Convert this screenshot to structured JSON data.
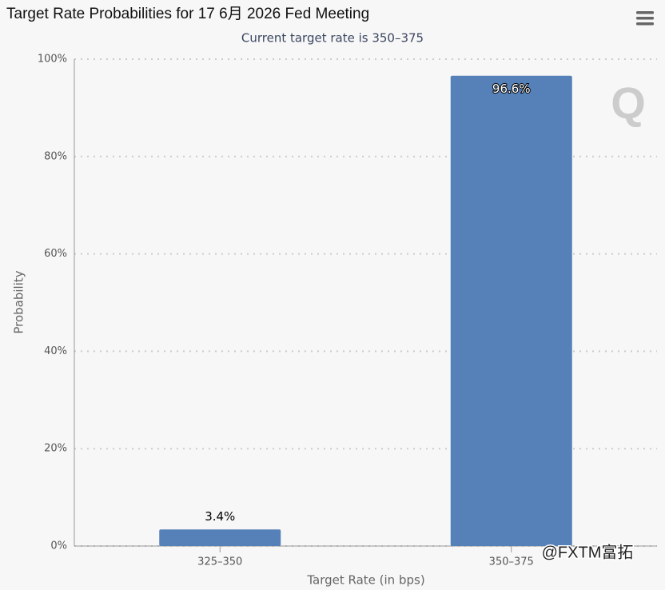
{
  "chart_data": {
    "type": "bar",
    "title": "Target Rate Probabilities for 17 6月 2026 Fed Meeting",
    "subtitle": "Current target rate is 350–375",
    "x_label": "Target Rate (in bps)",
    "y_label": "Probability",
    "categories": [
      "325–350",
      "350–375"
    ],
    "values": [
      3.4,
      96.6
    ],
    "value_labels": [
      "3.4%",
      "96.6%"
    ],
    "color": "#5681b8",
    "ylim": [
      0,
      100
    ],
    "yticks": [
      {
        "value": 0,
        "label": "0%"
      },
      {
        "value": 20,
        "label": "20%"
      },
      {
        "value": 40,
        "label": "40%"
      },
      {
        "value": 60,
        "label": "60%"
      },
      {
        "value": 80,
        "label": "80%"
      },
      {
        "value": 100,
        "label": "100%"
      }
    ],
    "grid": true,
    "watermark": "@FXTM富拓"
  }
}
